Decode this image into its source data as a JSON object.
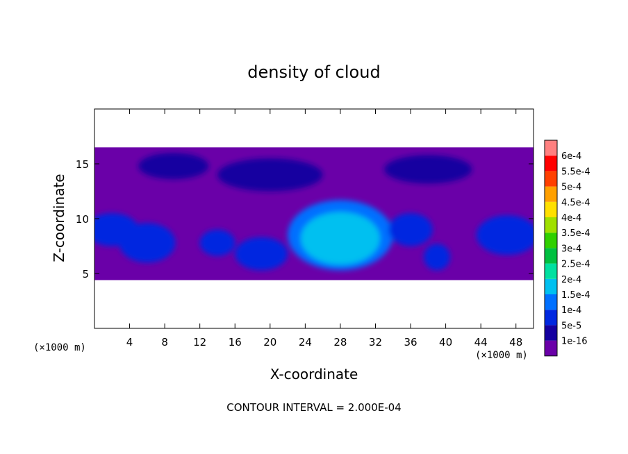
{
  "chart_data": {
    "type": "heatmap",
    "title": "density of cloud",
    "xlabel": "X-coordinate",
    "ylabel": "Z-coordinate",
    "x_unit": "(×1000 m)",
    "y_unit": "(×1000 m)",
    "xlim": [
      0,
      50
    ],
    "ylim": [
      0,
      20
    ],
    "x_ticks": [
      4,
      8,
      12,
      16,
      20,
      24,
      28,
      32,
      36,
      40,
      44,
      48
    ],
    "y_ticks": [
      5,
      10,
      15
    ],
    "colorbar": {
      "labels": [
        "1e-16",
        "5e-5",
        "1e-4",
        "1.5e-4",
        "2e-4",
        "2.5e-4",
        "3e-4",
        "3.5e-4",
        "4e-4",
        "4.5e-4",
        "5e-4",
        "5.5e-4",
        "6e-4"
      ],
      "colors": [
        "#6a00a8",
        "#1400a0",
        "#0028e0",
        "#0070ff",
        "#00c0f0",
        "#00e0a0",
        "#00c040",
        "#30d000",
        "#a0e000",
        "#ffe000",
        "#ffa000",
        "#ff4000",
        "#ff0000",
        "#ff8080"
      ]
    },
    "contour_interval_text": "CONTOUR INTERVAL = 2.000E-04",
    "cloud_layer_z": [
      4.4,
      16.5
    ],
    "features": [
      {
        "x": 28,
        "z": 8.5,
        "rx": 6,
        "rz": 3.2,
        "level": 3
      },
      {
        "x": 28,
        "z": 8.2,
        "rx": 4.5,
        "rz": 2.4,
        "level": 4
      },
      {
        "x": 6,
        "z": 7.8,
        "rx": 3.2,
        "rz": 1.8,
        "level": 2
      },
      {
        "x": 2,
        "z": 9,
        "rx": 3,
        "rz": 1.5,
        "level": 2
      },
      {
        "x": 19,
        "z": 6.8,
        "rx": 3,
        "rz": 1.5,
        "level": 2
      },
      {
        "x": 47,
        "z": 8.5,
        "rx": 3.5,
        "rz": 1.8,
        "level": 2
      },
      {
        "x": 14,
        "z": 7.8,
        "rx": 2,
        "rz": 1.2,
        "level": 2
      },
      {
        "x": 39,
        "z": 6.5,
        "rx": 1.5,
        "rz": 1.2,
        "level": 2
      },
      {
        "x": 36,
        "z": 9,
        "rx": 2.5,
        "rz": 1.5,
        "level": 2
      },
      {
        "x": 20,
        "z": 14,
        "rx": 6,
        "rz": 1.5,
        "level": 1
      },
      {
        "x": 38,
        "z": 14.5,
        "rx": 5,
        "rz": 1.3,
        "level": 1
      },
      {
        "x": 9,
        "z": 14.8,
        "rx": 4,
        "rz": 1.2,
        "level": 1
      }
    ]
  }
}
